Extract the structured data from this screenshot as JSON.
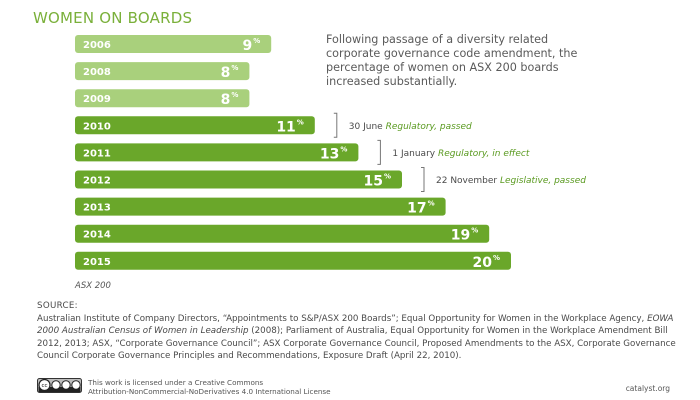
{
  "title": "WOMEN ON BOARDS",
  "intro": "Following passage of a diversity related corporate governance code amendment, the percentage of women on ASX 200 boards increased substantially.",
  "caption": "ASX 200",
  "percent_sign": "%",
  "colors": {
    "bar_light": "#a9d07c",
    "bar_dark": "#6aa72a",
    "title": "#7ab03a",
    "annotation_green": "#5a9a20",
    "text": "#4a4a4a"
  },
  "chart_data": {
    "type": "bar",
    "orientation": "horizontal",
    "title": "WOMEN ON BOARDS",
    "categories": [
      "2006",
      "2008",
      "2009",
      "2010",
      "2011",
      "2012",
      "2013",
      "2014",
      "2015"
    ],
    "values": [
      9,
      8,
      8,
      11,
      13,
      15,
      17,
      19,
      20
    ],
    "unit": "%",
    "highlight_from_index": 3,
    "annotations": [
      {
        "category": "2010",
        "date": "30 June",
        "status": "Regulatory, passed"
      },
      {
        "category": "2011",
        "date": "1 January",
        "status": "Regulatory, in effect"
      },
      {
        "category": "2012",
        "date": "22 November",
        "status": "Legislative, passed"
      }
    ]
  },
  "sources": {
    "heading": "SOURCE:",
    "part1": "Australian Institute of Company Directors, “Appointments to S&P/ASX 200 Boards”; Equal Opportunity for Women in the Workplace Agency, ",
    "italic1": "EOWA 2000 Australian Census of Women in Leadership",
    "part2": " (2008); Parliament of Australia, Equal Opportunity for Women in the Workplace Amendment Bill 2012, 2013; ASX, “Corporate Governance Council”; ASX Corporate Governance Council, Proposed Amendments to the ASX, Corporate Governance Council Corporate Governance Principles and Recommendations, Exposure Draft (April 22, 2010)."
  },
  "license": {
    "badge_text": "cc",
    "line1": "This work is licensed under a Creative Commons",
    "line2": "Attribution-NonCommercial-NoDerivatives 4.0 International License"
  },
  "site": "catalyst.org"
}
